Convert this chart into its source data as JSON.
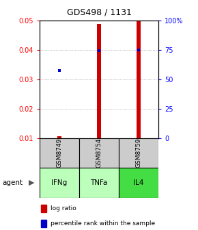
{
  "title": "GDS498 / 1131",
  "samples": [
    "GSM8749",
    "GSM8754",
    "GSM8759"
  ],
  "agents": [
    "IFNg",
    "TNFa",
    "IL4"
  ],
  "log_ratios": [
    0.0107,
    0.049,
    0.0502
  ],
  "percentile_ranks": [
    0.033,
    0.0398,
    0.0401
  ],
  "ylim_left": [
    0.01,
    0.05
  ],
  "ylim_right": [
    0,
    100
  ],
  "yticks_left": [
    0.01,
    0.02,
    0.03,
    0.04,
    0.05
  ],
  "ytick_labels_left": [
    "0.01",
    "0.02",
    "0.03",
    "0.04",
    "0.05"
  ],
  "yticks_right": [
    0,
    25,
    50,
    75,
    100
  ],
  "ytick_labels_right": [
    "0",
    "25",
    "50",
    "75",
    "100%"
  ],
  "bar_color": "#cc0000",
  "dot_color": "#0000cc",
  "agent_colors": [
    "#bbffbb",
    "#bbffbb",
    "#44dd44"
  ],
  "sample_box_color": "#cccccc",
  "grid_color": "#888888",
  "bar_width": 0.1
}
